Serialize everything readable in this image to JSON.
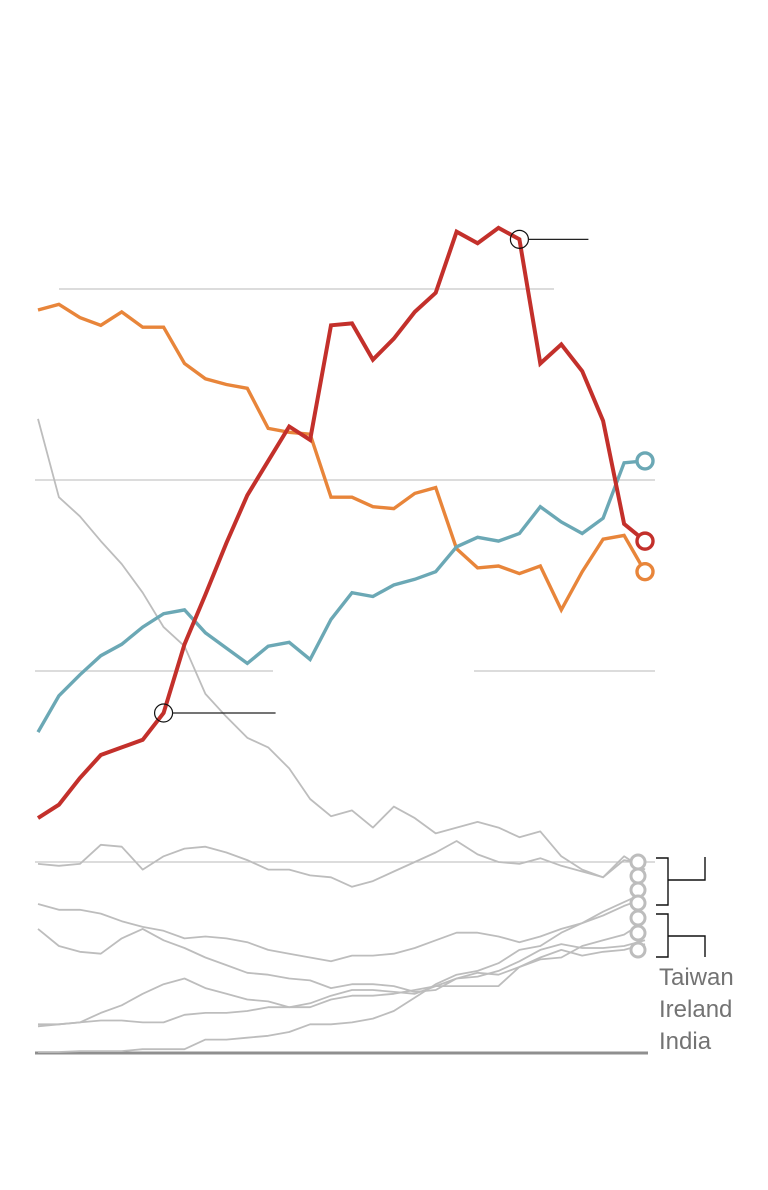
{
  "chart_data": {
    "type": "line",
    "title": "",
    "xlabel": "",
    "ylabel": "",
    "x": [
      0,
      1,
      2,
      3,
      4,
      5,
      6,
      7,
      8,
      9,
      10,
      11,
      12,
      13,
      14,
      15,
      16,
      17,
      18,
      19,
      20,
      21,
      22,
      23,
      24,
      25,
      26,
      27,
      28,
      29
    ],
    "xlim": [
      0,
      29
    ],
    "ylim": [
      0,
      45
    ],
    "gridlines": [
      10,
      20,
      30,
      40
    ],
    "grid": true,
    "colors": {
      "red": "#c3302b",
      "orange": "#e8853a",
      "teal": "#6ba8b5",
      "gray": "#bdbdbd",
      "annotation": "#111111",
      "label": "#737373"
    },
    "series": [
      {
        "name": "red",
        "highlight": true,
        "color_key": "red",
        "values": [
          12.3,
          13.0,
          14.4,
          15.6,
          16.0,
          16.4,
          17.8,
          21.4,
          24.0,
          26.7,
          29.2,
          31.0,
          32.8,
          32.1,
          38.1,
          38.2,
          36.3,
          37.4,
          38.8,
          39.8,
          43.0,
          42.4,
          43.2,
          42.6,
          36.1,
          37.1,
          35.7,
          33.1,
          27.7,
          26.8
        ]
      },
      {
        "name": "orange",
        "highlight": true,
        "color_key": "orange",
        "values": [
          38.9,
          39.2,
          38.5,
          38.1,
          38.8,
          38.0,
          38.0,
          36.1,
          35.3,
          35.0,
          34.8,
          32.7,
          32.5,
          32.4,
          29.1,
          29.1,
          28.6,
          28.5,
          29.3,
          29.6,
          26.4,
          25.4,
          25.5,
          25.1,
          25.5,
          23.2,
          25.2,
          26.9,
          27.1,
          25.2
        ]
      },
      {
        "name": "teal",
        "highlight": true,
        "color_key": "teal",
        "values": [
          16.8,
          18.7,
          19.8,
          20.8,
          21.4,
          22.3,
          23.0,
          23.2,
          22.0,
          21.2,
          20.4,
          21.3,
          21.5,
          20.6,
          22.7,
          24.1,
          23.9,
          24.5,
          24.8,
          25.2,
          26.5,
          27.0,
          26.8,
          27.2,
          28.6,
          27.8,
          27.2,
          28.0,
          30.9,
          31.0
        ]
      },
      {
        "name": "gray-1",
        "highlight": false,
        "color_key": "gray",
        "values": [
          33.2,
          29.1,
          28.1,
          26.8,
          25.6,
          24.1,
          22.3,
          21.3,
          18.8,
          17.6,
          16.5,
          16.0,
          14.9,
          13.3,
          12.4,
          12.7,
          11.8,
          12.9,
          12.3,
          11.5,
          11.8,
          12.1,
          11.8,
          11.3,
          11.6,
          10.3,
          9.6,
          9.2,
          10.1,
          9.9
        ]
      },
      {
        "name": "gray-2",
        "highlight": false,
        "color_key": "gray",
        "values": [
          9.9,
          9.8,
          9.9,
          10.9,
          10.8,
          9.6,
          10.3,
          10.7,
          10.8,
          10.5,
          10.1,
          9.6,
          9.6,
          9.3,
          9.2,
          8.7,
          9.0,
          9.5,
          10.0,
          10.5,
          11.1,
          10.4,
          10.0,
          9.9,
          10.2,
          9.8,
          9.5,
          9.2,
          10.3,
          9.6
        ]
      },
      {
        "name": "gray-3",
        "highlight": false,
        "color_key": "gray",
        "values": [
          7.8,
          7.5,
          7.5,
          7.3,
          6.9,
          6.6,
          6.4,
          6.0,
          6.1,
          6.0,
          5.8,
          5.4,
          5.2,
          5.0,
          4.8,
          5.1,
          5.1,
          5.2,
          5.5,
          5.9,
          6.3,
          6.3,
          6.1,
          5.8,
          6.1,
          6.5,
          6.8,
          7.4,
          7.9,
          8.4
        ]
      },
      {
        "name": "gray-4",
        "highlight": false,
        "color_key": "gray",
        "values": [
          6.5,
          5.6,
          5.3,
          5.2,
          6.0,
          6.5,
          5.9,
          5.5,
          5.0,
          4.6,
          4.2,
          4.1,
          3.9,
          3.8,
          3.4,
          3.6,
          3.6,
          3.5,
          3.2,
          3.3,
          3.9,
          4.2,
          4.1,
          4.5,
          4.9,
          5.0,
          5.6,
          5.9,
          6.2,
          6.9
        ]
      },
      {
        "name": "gray-5",
        "highlight": false,
        "color_key": "gray",
        "values": [
          1.4,
          1.5,
          1.6,
          2.1,
          2.5,
          3.1,
          3.6,
          3.9,
          3.4,
          3.1,
          2.8,
          2.7,
          2.4,
          2.4,
          2.8,
          3.0,
          3.0,
          3.1,
          3.3,
          3.5,
          3.9,
          4.0,
          4.3,
          4.8,
          5.4,
          5.7,
          5.5,
          5.5,
          5.6,
          5.9
        ]
      },
      {
        "name": "gray-6",
        "highlight": false,
        "color_key": "gray",
        "values": [
          1.5,
          1.5,
          1.6,
          1.7,
          1.7,
          1.6,
          1.6,
          2.0,
          2.1,
          2.1,
          2.2,
          2.4,
          2.4,
          2.6,
          3.0,
          3.3,
          3.3,
          3.2,
          3.1,
          3.5,
          3.5,
          3.5,
          3.5,
          4.5,
          5.0,
          5.4,
          5.1,
          5.3,
          5.4,
          5.7
        ]
      },
      {
        "name": "gray-7",
        "highlight": false,
        "color_key": "gray",
        "values": [
          0.05,
          0.05,
          0.1,
          0.1,
          0.1,
          0.2,
          0.2,
          0.2,
          0.7,
          0.7,
          0.8,
          0.9,
          1.1,
          1.5,
          1.5,
          1.6,
          1.8,
          2.2,
          2.9,
          3.6,
          4.1,
          4.3,
          4.7,
          5.4,
          5.6,
          6.3,
          6.8,
          7.2,
          7.7,
          8.1
        ]
      }
    ],
    "annotations": [
      {
        "series": "red",
        "index": 6
      },
      {
        "series": "red",
        "index": 23
      }
    ],
    "legend": {
      "position": "bottom-right",
      "labels": [
        "Taiwan",
        "Ireland",
        "India"
      ]
    }
  }
}
